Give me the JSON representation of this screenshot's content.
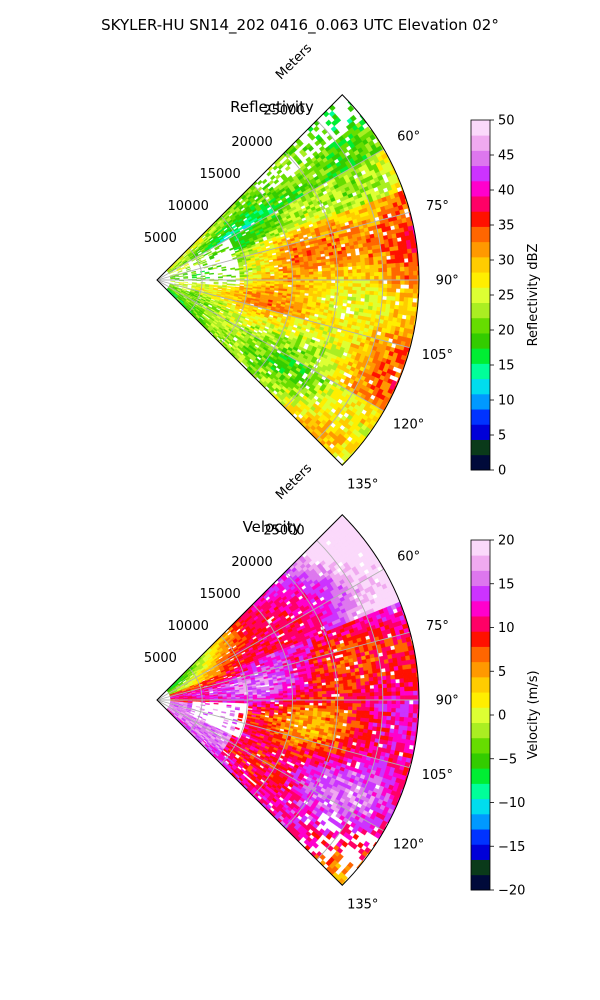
{
  "figure": {
    "title": "SKYLER-HU  SN14_202  0416_0.063 UTC Elevation 02°"
  },
  "chart_data": [
    {
      "type": "polar-sector",
      "title": "Reflectivity",
      "radial_label": "Meters",
      "radial_ticks": [
        "5000",
        "10000",
        "15000",
        "20000",
        "25000"
      ],
      "azimuth_ticks": [
        "60°",
        "75°",
        "90°",
        "105°",
        "120°",
        "135°"
      ],
      "azimuth_range_deg": [
        45,
        135
      ],
      "range_max_m": 29000,
      "colorbar": {
        "label": "Reflectivity dBZ",
        "min": 0,
        "max": 50,
        "ticks": [
          "0",
          "5",
          "10",
          "15",
          "20",
          "25",
          "30",
          "35",
          "40",
          "45",
          "50"
        ],
        "colors": [
          "#000a3a",
          "#0a3a1a",
          "#0000d8",
          "#0033ff",
          "#0099ff",
          "#00ddee",
          "#00ff99",
          "#00ee33",
          "#33cc00",
          "#66dd00",
          "#aaee22",
          "#ddff33",
          "#ffee00",
          "#ffcc00",
          "#ff9900",
          "#ff6600",
          "#ff1100",
          "#ff0066",
          "#ff00cc",
          "#cc33ff",
          "#dd77ee",
          "#f0aaf0",
          "#fbd9fb"
        ]
      }
    },
    {
      "type": "polar-sector",
      "title": "Velocity",
      "radial_label": "Meters",
      "radial_ticks": [
        "5000",
        "10000",
        "15000",
        "20000",
        "25000"
      ],
      "azimuth_ticks": [
        "60°",
        "75°",
        "90°",
        "105°",
        "120°",
        "135°"
      ],
      "azimuth_range_deg": [
        45,
        135
      ],
      "range_max_m": 29000,
      "colorbar": {
        "label": "Velocity (m/s)",
        "min": -20,
        "max": 20,
        "ticks": [
          "−20",
          "−15",
          "−10",
          "−5",
          "0",
          "5",
          "10",
          "15",
          "20"
        ],
        "colors": [
          "#000a3a",
          "#0a3a1a",
          "#0000d8",
          "#0033ff",
          "#0099ff",
          "#00ddee",
          "#00ff99",
          "#00ee33",
          "#33cc00",
          "#66dd00",
          "#aaee22",
          "#ddff33",
          "#ffee00",
          "#ffcc00",
          "#ff9900",
          "#ff6600",
          "#ff1100",
          "#ff0066",
          "#ff00cc",
          "#cc33ff",
          "#dd77ee",
          "#f0aaf0",
          "#fbd9fb"
        ]
      }
    }
  ]
}
